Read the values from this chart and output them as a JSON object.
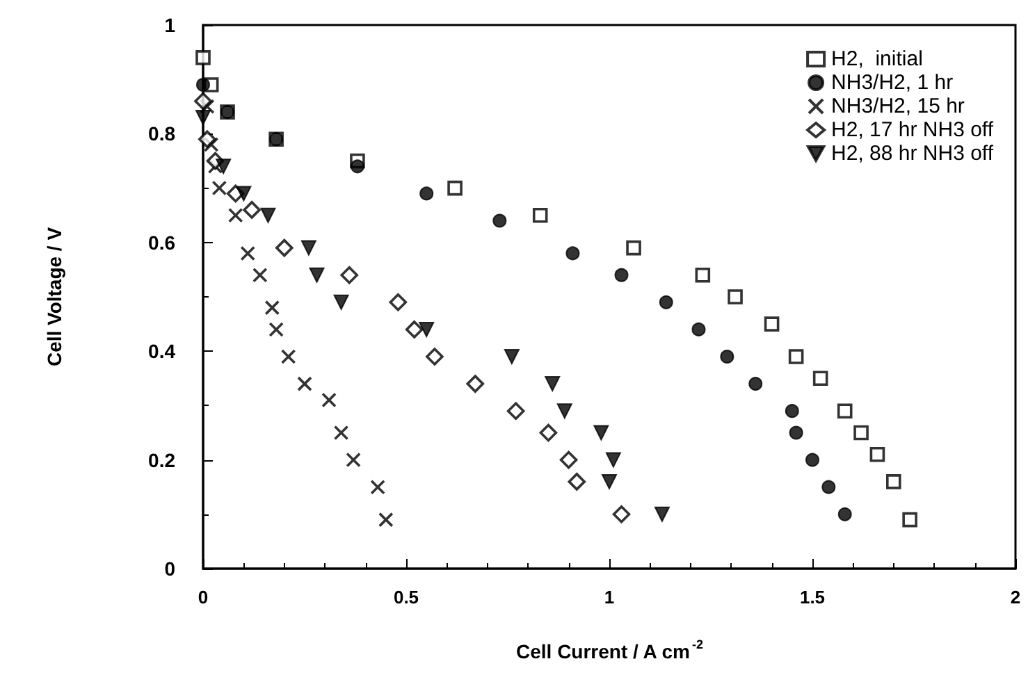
{
  "chart_data": {
    "type": "scatter",
    "xlabel": "Cell Current / A cm$^{-2}$",
    "ylabel": "Cell Voltage / V",
    "xlim": [
      0,
      2
    ],
    "xticks": [
      0,
      0.5,
      1,
      1.5,
      2
    ],
    "ylim": [
      0,
      1
    ],
    "yticks": [
      0,
      0.2,
      0.4,
      0.6,
      0.8,
      1
    ],
    "grid": false,
    "legend": "top right",
    "series": [
      {
        "name": "H2,  initial",
        "color": "#000000",
        "marker": "square",
        "x": [
          0,
          0.02,
          0.06,
          0.18,
          0.38,
          0.62,
          0.83,
          1.06,
          1.23,
          1.31,
          1.4,
          1.46,
          1.52,
          1.58,
          1.62,
          1.66,
          1.7,
          1.74
        ],
        "values": [
          0.94,
          0.89,
          0.84,
          0.79,
          0.75,
          0.7,
          0.65,
          0.59,
          0.54,
          0.5,
          0.45,
          0.39,
          0.35,
          0.29,
          0.25,
          0.21,
          0.16,
          0.09
        ]
      },
      {
        "name": "NH3/H2, 1 hr",
        "color": "#000000",
        "marker": "circle",
        "x": [
          0,
          0.06,
          0.18,
          0.38,
          0.55,
          0.73,
          0.91,
          1.03,
          1.14,
          1.22,
          1.29,
          1.36,
          1.45,
          1.46,
          1.5,
          1.54,
          1.58
        ],
        "values": [
          0.89,
          0.84,
          0.79,
          0.74,
          0.69,
          0.64,
          0.58,
          0.54,
          0.49,
          0.44,
          0.39,
          0.34,
          0.29,
          0.25,
          0.2,
          0.15,
          0.1
        ]
      },
      {
        "name": "NH3/H2, 15 hr",
        "color": "#000000",
        "marker": "cross",
        "x": [
          0.01,
          0.02,
          0.03,
          0.04,
          0.08,
          0.11,
          0.14,
          0.17,
          0.18,
          0.21,
          0.25,
          0.31,
          0.34,
          0.37,
          0.43,
          0.45
        ],
        "values": [
          0.85,
          0.78,
          0.74,
          0.7,
          0.65,
          0.58,
          0.54,
          0.48,
          0.44,
          0.39,
          0.34,
          0.31,
          0.25,
          0.2,
          0.15,
          0.09
        ]
      },
      {
        "name": "H2, 17 hr NH3 off",
        "color": "#000000",
        "marker": "diamond",
        "x": [
          0,
          0.01,
          0.03,
          0.08,
          0.12,
          0.2,
          0.36,
          0.48,
          0.52,
          0.57,
          0.67,
          0.77,
          0.85,
          0.9,
          0.92,
          1.03
        ],
        "values": [
          0.86,
          0.79,
          0.75,
          0.69,
          0.66,
          0.59,
          0.54,
          0.49,
          0.44,
          0.39,
          0.34,
          0.29,
          0.25,
          0.2,
          0.16,
          0.1
        ]
      },
      {
        "name": "H2, 88 hr NH3 off",
        "color": "#000000",
        "marker": "triangle",
        "x": [
          0,
          0.05,
          0.1,
          0.16,
          0.26,
          0.28,
          0.34,
          0.55,
          0.76,
          0.86,
          0.89,
          0.98,
          1.01,
          1.0,
          1.13
        ],
        "values": [
          0.83,
          0.74,
          0.69,
          0.65,
          0.59,
          0.54,
          0.49,
          0.44,
          0.39,
          0.34,
          0.29,
          0.25,
          0.2,
          0.16,
          0.1
        ]
      }
    ]
  }
}
